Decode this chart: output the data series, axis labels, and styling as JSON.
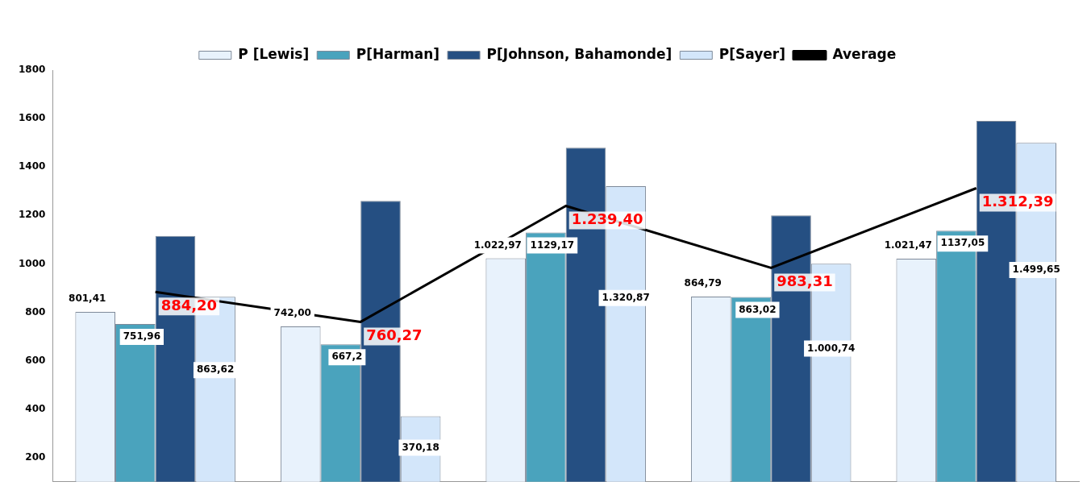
{
  "chart_data": {
    "type": "bar",
    "categories": [
      null,
      null,
      null,
      null,
      null
    ],
    "series": [
      {
        "name": "P [Lewis]",
        "color": "#e8f2fc",
        "values": [
          801.41,
          742.0,
          1022.97,
          864.79,
          1021.47
        ],
        "value_labels": [
          "801,41",
          "742,00",
          "1.022,97",
          "864,79",
          "1.021,47"
        ]
      },
      {
        "name": "P[Harman]",
        "color": "#4aa3bd",
        "values": [
          751.96,
          667.2,
          1129.17,
          863.02,
          1137.05
        ],
        "value_labels": [
          "751,96",
          "667,2",
          "1129,17",
          "863,02",
          "1137,05"
        ]
      },
      {
        "name": "P[Johnson, Bahamonde]",
        "color": "#254f82",
        "values": [
          1115,
          1260,
          1480,
          1200,
          1590
        ]
      },
      {
        "name": "P[Sayer]",
        "color": "#d3e6fa",
        "values": [
          863.62,
          370.18,
          1320.87,
          1000.74,
          1499.65
        ],
        "value_labels": [
          "863,62",
          "370,18",
          "1.320,87",
          "1.000,74",
          "1.499,65"
        ]
      },
      {
        "name": "Average",
        "type": "line",
        "color": "#000000",
        "values": [
          884.2,
          760.27,
          1239.4,
          983.31,
          1312.39
        ],
        "value_labels": [
          "884,20",
          "760,27",
          "1.239,40",
          "983,31",
          "1.312,39"
        ]
      }
    ],
    "ylim": [
      100,
      1800
    ],
    "yticks": [
      200,
      400,
      600,
      800,
      1000,
      1200,
      1400,
      1600,
      1800
    ],
    "grid": false,
    "legend": "top",
    "marker": "none",
    "tick_labels": "y"
  }
}
